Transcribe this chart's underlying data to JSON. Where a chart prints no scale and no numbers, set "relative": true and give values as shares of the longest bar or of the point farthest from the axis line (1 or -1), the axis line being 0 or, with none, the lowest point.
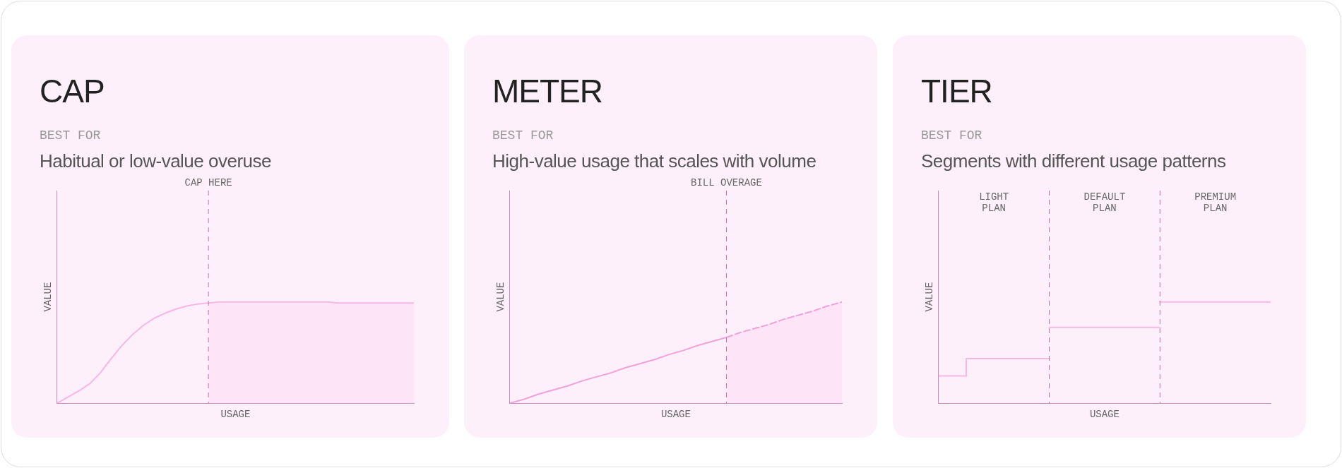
{
  "chart_data": [
    {
      "type": "line",
      "title": "CAP",
      "annotations": [
        "BEST FOR",
        "CAP HERE"
      ],
      "subtitle": "Habitual or low-value overuse",
      "xlabel": "USAGE",
      "ylabel": "VALUE",
      "relative": true,
      "tick_labels": false,
      "grid": false,
      "legend": false,
      "marker": "none",
      "categories": [
        null,
        null,
        null,
        null,
        null,
        null,
        null,
        null,
        null,
        null,
        null,
        null,
        null,
        null,
        null,
        null,
        null,
        null,
        null,
        null,
        null,
        null,
        null,
        null,
        null,
        null,
        null,
        null,
        null,
        null,
        null,
        null,
        null,
        null
      ],
      "series": [
        {
          "color": "#f7b7e5",
          "values": [
            0,
            0.06,
            0.12,
            0.19,
            0.3,
            0.44,
            0.57,
            0.68,
            0.77,
            0.84,
            0.89,
            0.93,
            0.96,
            0.98,
            0.99,
            1,
            1,
            1,
            1,
            1,
            1,
            1,
            1,
            1,
            1,
            1,
            0.99,
            0.99,
            0.99,
            0.99,
            0.99,
            0.99,
            0.99,
            0.99
          ]
        },
        {
          "type": "area",
          "color": "#fde5f7",
          "values": [
            null,
            null,
            null,
            null,
            null,
            null,
            null,
            null,
            null,
            null,
            null,
            null,
            null,
            null,
            0.99,
            1,
            1,
            1,
            1,
            1,
            1,
            1,
            1,
            1,
            1,
            1,
            0.99,
            0.99,
            0.99,
            0.99,
            0.99,
            0.99,
            0.99,
            0.99
          ]
        }
      ]
    },
    {
      "type": "line",
      "title": "METER",
      "annotations": [
        "BEST FOR",
        "BILL OVERAGE"
      ],
      "subtitle": "High-value usage that scales with volume",
      "xlabel": "USAGE",
      "ylabel": "VALUE",
      "relative": true,
      "tick_labels": false,
      "grid": false,
      "legend": false,
      "marker": "none",
      "categories": [
        null,
        null,
        null,
        null,
        null,
        null,
        null,
        null,
        null,
        null,
        null,
        null,
        null,
        null,
        null,
        null,
        null,
        null,
        null,
        null,
        null,
        null,
        null,
        null
      ],
      "series": [
        {
          "color": "#f2a2da",
          "values": [
            0,
            0.04,
            0.09,
            0.13,
            0.17,
            0.22,
            0.26,
            0.3,
            0.35,
            0.39,
            0.43,
            0.48,
            0.52,
            0.57,
            0.61,
            0.65,
            null,
            null,
            null,
            null,
            null,
            null,
            null,
            null
          ]
        },
        {
          "type": "area",
          "color": "#fde5f7",
          "line_style": "dashed",
          "values": [
            null,
            null,
            null,
            null,
            null,
            null,
            null,
            null,
            null,
            null,
            null,
            null,
            null,
            null,
            null,
            0.65,
            0.7,
            0.74,
            0.78,
            0.83,
            0.87,
            0.91,
            0.96,
            1
          ]
        }
      ]
    },
    {
      "type": "step",
      "title": "TIER",
      "annotations": [
        "BEST FOR",
        "LIGHT PLAN",
        "DEFAULT PLAN",
        "PREMIUM PLAN"
      ],
      "subtitle": "Segments with different usage patterns",
      "xlabel": "USAGE",
      "ylabel": "VALUE",
      "relative": true,
      "tick_labels": false,
      "grid": false,
      "legend": false,
      "marker": "none",
      "categories": [
        null,
        null,
        null,
        null,
        null,
        null,
        null,
        null,
        null,
        null,
        null,
        null,
        null
      ],
      "series": [
        {
          "color": "#f7b7e5",
          "values": [
            0.27,
            0.44,
            0.44,
            0.44,
            0.44,
            null,
            null,
            null,
            null,
            null,
            null,
            null,
            null
          ]
        },
        {
          "color": "#f7b7e5",
          "values": [
            null,
            null,
            null,
            null,
            0.75,
            0.75,
            0.75,
            0.75,
            0.75,
            null,
            null,
            null,
            null
          ]
        },
        {
          "color": "#f7b7e5",
          "values": [
            null,
            null,
            null,
            null,
            null,
            null,
            null,
            null,
            1,
            1,
            1,
            1,
            1
          ]
        }
      ]
    }
  ]
}
